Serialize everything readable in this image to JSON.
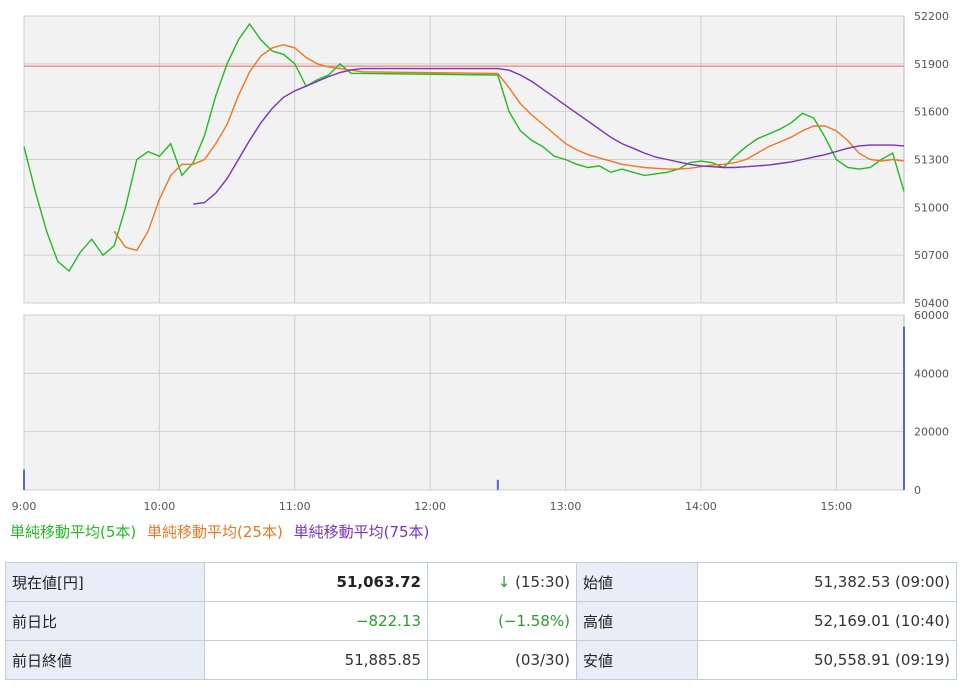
{
  "colors": {
    "ma5": "#22bb22",
    "ma25": "#ee7722",
    "ma75": "#7733bb",
    "prev_close_line": "#f08080",
    "volume": "#5a66cc",
    "down": "#2a9d2a"
  },
  "chart_data": [
    {
      "type": "line",
      "title": "",
      "x_time_range": [
        "09:00",
        "15:30"
      ],
      "x_ticks": [
        "9:00",
        "10:00",
        "11:00",
        "12:00",
        "13:00",
        "14:00",
        "15:00"
      ],
      "ylim": [
        50400,
        52200
      ],
      "y_ticks": [
        50400,
        50700,
        51000,
        51300,
        51600,
        51900,
        52200
      ],
      "reference_line": {
        "name": "prev_close",
        "value": 51885.85
      },
      "series": [
        {
          "name": "単純移動平均(5本)",
          "x": [
            "09:00",
            "09:05",
            "09:10",
            "09:15",
            "09:20",
            "09:25",
            "09:30",
            "09:35",
            "09:40",
            "09:45",
            "09:50",
            "09:55",
            "10:00",
            "10:05",
            "10:10",
            "10:15",
            "10:20",
            "10:25",
            "10:30",
            "10:35",
            "10:40",
            "10:45",
            "10:50",
            "10:55",
            "11:00",
            "11:05",
            "11:10",
            "11:15",
            "11:20",
            "11:25",
            "11:30",
            "12:30",
            "12:35",
            "12:40",
            "12:45",
            "12:50",
            "12:55",
            "13:00",
            "13:05",
            "13:10",
            "13:15",
            "13:20",
            "13:25",
            "13:30",
            "13:35",
            "13:40",
            "13:45",
            "13:50",
            "13:55",
            "14:00",
            "14:05",
            "14:10",
            "14:15",
            "14:20",
            "14:25",
            "14:30",
            "14:35",
            "14:40",
            "14:45",
            "14:50",
            "14:55",
            "15:00",
            "15:05",
            "15:10",
            "15:15",
            "15:20",
            "15:25",
            "15:30"
          ],
          "y": [
            51380,
            51100,
            50850,
            50660,
            50600,
            50720,
            50800,
            50700,
            50760,
            51000,
            51300,
            51350,
            51320,
            51400,
            51200,
            51280,
            51450,
            51700,
            51900,
            52050,
            52150,
            52050,
            51980,
            51960,
            51900,
            51760,
            51800,
            51830,
            51900,
            51840,
            51840,
            51830,
            51600,
            51480,
            51420,
            51380,
            51320,
            51300,
            51270,
            51250,
            51260,
            51220,
            51240,
            51220,
            51200,
            51210,
            51220,
            51240,
            51280,
            51290,
            51280,
            51250,
            51320,
            51380,
            51430,
            51460,
            51490,
            51530,
            51590,
            51560,
            51440,
            51300,
            51250,
            51240,
            51250,
            51300,
            51340,
            51100
          ]
        },
        {
          "name": "単純移動平均(25本)",
          "x": [
            "09:40",
            "09:45",
            "09:50",
            "09:55",
            "10:00",
            "10:05",
            "10:10",
            "10:15",
            "10:20",
            "10:25",
            "10:30",
            "10:35",
            "10:40",
            "10:45",
            "10:50",
            "10:55",
            "11:00",
            "11:05",
            "11:10",
            "11:15",
            "11:20",
            "11:25",
            "11:30",
            "12:30",
            "12:35",
            "12:40",
            "12:45",
            "12:50",
            "12:55",
            "13:00",
            "13:05",
            "13:10",
            "13:15",
            "13:20",
            "13:25",
            "13:30",
            "13:35",
            "13:40",
            "13:45",
            "13:50",
            "13:55",
            "14:00",
            "14:05",
            "14:10",
            "14:15",
            "14:20",
            "14:25",
            "14:30",
            "14:35",
            "14:40",
            "14:45",
            "14:50",
            "14:55",
            "15:00",
            "15:05",
            "15:10",
            "15:15",
            "15:20",
            "15:25",
            "15:30"
          ],
          "y": [
            50850,
            50750,
            50730,
            50850,
            51050,
            51200,
            51270,
            51270,
            51300,
            51400,
            51520,
            51700,
            51850,
            51950,
            52000,
            52020,
            52000,
            51940,
            51900,
            51880,
            51870,
            51860,
            51850,
            51840,
            51750,
            51650,
            51580,
            51520,
            51460,
            51400,
            51360,
            51330,
            51310,
            51290,
            51270,
            51260,
            51250,
            51245,
            51240,
            51240,
            51245,
            51255,
            51265,
            51270,
            51280,
            51300,
            51340,
            51380,
            51410,
            51440,
            51480,
            51510,
            51510,
            51480,
            51420,
            51340,
            51300,
            51290,
            51300,
            51290
          ]
        },
        {
          "name": "単純移動平均(75本)",
          "x": [
            "10:15",
            "10:20",
            "10:25",
            "10:30",
            "10:35",
            "10:40",
            "10:45",
            "10:50",
            "10:55",
            "11:00",
            "11:05",
            "11:10",
            "11:15",
            "11:20",
            "11:25",
            "11:30",
            "12:30",
            "12:35",
            "12:40",
            "12:45",
            "12:50",
            "12:55",
            "13:00",
            "13:05",
            "13:10",
            "13:15",
            "13:20",
            "13:25",
            "13:30",
            "13:35",
            "13:40",
            "13:45",
            "13:50",
            "13:55",
            "14:00",
            "14:05",
            "14:10",
            "14:15",
            "14:20",
            "14:25",
            "14:30",
            "14:35",
            "14:40",
            "14:45",
            "14:50",
            "14:55",
            "15:00",
            "15:05",
            "15:10",
            "15:15",
            "15:20",
            "15:25",
            "15:30"
          ],
          "y": [
            51020,
            51030,
            51090,
            51180,
            51300,
            51420,
            51530,
            51620,
            51690,
            51730,
            51760,
            51790,
            51820,
            51845,
            51862,
            51870,
            51870,
            51860,
            51830,
            51790,
            51740,
            51690,
            51640,
            51590,
            51540,
            51490,
            51440,
            51400,
            51370,
            51340,
            51315,
            51300,
            51285,
            51270,
            51260,
            51255,
            51250,
            51250,
            51255,
            51260,
            51265,
            51275,
            51285,
            51300,
            51315,
            51330,
            51350,
            51370,
            51385,
            51390,
            51390,
            51390,
            51385
          ]
        }
      ]
    },
    {
      "type": "bar",
      "title": "",
      "ylim": [
        0,
        60000
      ],
      "y_ticks": [
        0,
        20000,
        40000,
        60000
      ],
      "x_ticks": [
        "9:00",
        "10:00",
        "11:00",
        "12:00",
        "13:00",
        "14:00",
        "15:00"
      ],
      "series": [
        {
          "name": "volume",
          "x": [
            "09:00",
            "12:30",
            "15:30"
          ],
          "values": [
            7000,
            3500,
            56000
          ]
        }
      ]
    }
  ],
  "legend": {
    "ma5": "単純移動平均(5本)",
    "ma25": "単純移動平均(25本)",
    "ma75": "単純移動平均(75本)"
  },
  "quote_table": {
    "current_label": "現在値[円]",
    "current_value": "51,063.72",
    "current_arrow": "↓",
    "current_time": "(15:30)",
    "open_label": "始値",
    "open_value": "51,382.53 (09:00)",
    "change_label": "前日比",
    "change_value": "−822.13",
    "change_pct": "(−1.58%)",
    "high_label": "高値",
    "high_value": "52,169.01 (10:40)",
    "prev_close_label": "前日終値",
    "prev_close_value": "51,885.85",
    "prev_close_date": "(03/30)",
    "low_label": "安値",
    "low_value": "50,558.91 (09:19)"
  }
}
